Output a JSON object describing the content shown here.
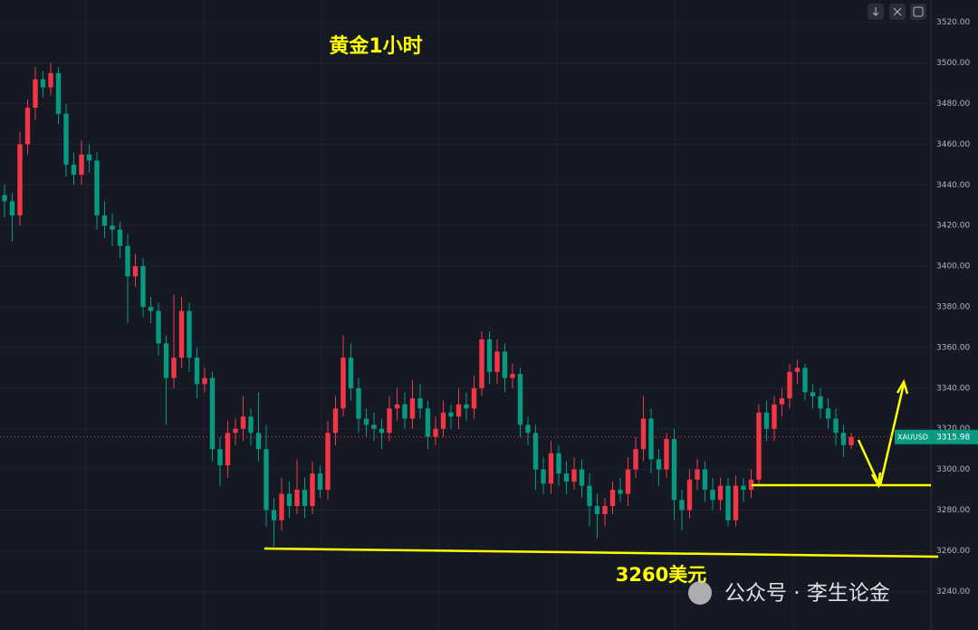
{
  "chart_data": {
    "type": "candlestick",
    "title": "黄金1小时",
    "annotation": "3260美元",
    "watermark": "公众号 · 李生论金",
    "symbol": "XAUUSD",
    "last_price": 3315.98,
    "up_color": "#f23645",
    "down_color": "#089981",
    "ylim": [
      3221,
      3531
    ],
    "yticks": [
      {
        "value": 3240,
        "label": "3240.00"
      },
      {
        "value": 3260,
        "label": "3260.00"
      },
      {
        "value": 3280,
        "label": "3280.00"
      },
      {
        "value": 3300,
        "label": "3300.00"
      },
      {
        "value": 3320,
        "label": "3320.00"
      },
      {
        "value": 3340,
        "label": "3340.00"
      },
      {
        "value": 3360,
        "label": "3360.00"
      },
      {
        "value": 3380,
        "label": "3380.00"
      },
      {
        "value": 3400,
        "label": "3400.00"
      },
      {
        "value": 3420,
        "label": "3420.00"
      },
      {
        "value": 3440,
        "label": "3440.00"
      },
      {
        "value": 3460,
        "label": "3460.00"
      },
      {
        "value": 3480,
        "label": "3480.00"
      },
      {
        "value": 3500,
        "label": "3500.00"
      },
      {
        "value": 3520,
        "label": "3520.00"
      }
    ],
    "open": [
      3435,
      3432,
      3425,
      3460,
      3478,
      3492,
      3488,
      3495,
      3475,
      3450,
      3445,
      3455,
      3452,
      3425,
      3420,
      3418,
      3410,
      3395,
      3400,
      3380,
      3378,
      3362,
      3345,
      3355,
      3378,
      3355,
      3342,
      3345,
      3310,
      3302,
      3318,
      3320,
      3326,
      3318,
      3310,
      3280,
      3275,
      3288,
      3282,
      3290,
      3282,
      3298,
      3290,
      3318,
      3330,
      3355,
      3340,
      3325,
      3322,
      3320,
      3318,
      3330,
      3332,
      3325,
      3335,
      3330,
      3316,
      3320,
      3328,
      3326,
      3332,
      3330,
      3340,
      3364,
      3348,
      3358,
      3345,
      3347,
      3322,
      3318,
      3300,
      3293,
      3308,
      3298,
      3294,
      3300,
      3292,
      3282,
      3278,
      3282,
      3290,
      3288,
      3300,
      3310,
      3325,
      3305,
      3300,
      3315,
      3285,
      3280,
      3295,
      3300,
      3290,
      3285,
      3292,
      3275,
      3292,
      3290,
      3295,
      3328,
      3320,
      3332,
      3335,
      3348,
      3350,
      3338,
      3336,
      3330,
      3325,
      3318,
      3312
    ],
    "high": [
      3440,
      3436,
      3466,
      3482,
      3498,
      3496,
      3500,
      3498,
      3480,
      3456,
      3462,
      3460,
      3456,
      3432,
      3426,
      3422,
      3416,
      3406,
      3404,
      3385,
      3382,
      3366,
      3386,
      3385,
      3382,
      3360,
      3350,
      3348,
      3316,
      3324,
      3325,
      3336,
      3330,
      3338,
      3322,
      3286,
      3296,
      3294,
      3305,
      3296,
      3304,
      3302,
      3324,
      3336,
      3366,
      3362,
      3345,
      3330,
      3328,
      3325,
      3336,
      3340,
      3338,
      3344,
      3342,
      3334,
      3326,
      3334,
      3332,
      3340,
      3338,
      3346,
      3368,
      3368,
      3364,
      3362,
      3352,
      3350,
      3326,
      3322,
      3306,
      3314,
      3312,
      3304,
      3306,
      3305,
      3298,
      3288,
      3286,
      3294,
      3296,
      3306,
      3316,
      3336,
      3330,
      3310,
      3318,
      3320,
      3290,
      3300,
      3305,
      3304,
      3296,
      3296,
      3296,
      3297,
      3296,
      3300,
      3332,
      3334,
      3336,
      3340,
      3352,
      3354,
      3352,
      3342,
      3340,
      3335,
      3330,
      3322,
      3318
    ],
    "low": [
      3424,
      3412,
      3420,
      3455,
      3472,
      3483,
      3484,
      3470,
      3444,
      3440,
      3440,
      3446,
      3418,
      3414,
      3410,
      3404,
      3372,
      3390,
      3375,
      3372,
      3356,
      3322,
      3340,
      3350,
      3348,
      3335,
      3338,
      3304,
      3292,
      3296,
      3312,
      3314,
      3312,
      3304,
      3272,
      3262,
      3270,
      3276,
      3278,
      3276,
      3278,
      3286,
      3285,
      3312,
      3326,
      3334,
      3318,
      3316,
      3314,
      3310,
      3314,
      3324,
      3320,
      3320,
      3325,
      3310,
      3312,
      3316,
      3320,
      3320,
      3324,
      3325,
      3336,
      3342,
      3342,
      3338,
      3340,
      3316,
      3312,
      3290,
      3288,
      3288,
      3292,
      3288,
      3290,
      3286,
      3272,
      3266,
      3272,
      3278,
      3284,
      3282,
      3296,
      3304,
      3298,
      3292,
      3296,
      3275,
      3270,
      3276,
      3290,
      3284,
      3280,
      3280,
      3272,
      3272,
      3284,
      3286,
      3292,
      3314,
      3314,
      3326,
      3330,
      3342,
      3334,
      3330,
      3325,
      3320,
      3312,
      3306,
      3310
    ],
    "close": [
      3432,
      3425,
      3460,
      3478,
      3492,
      3488,
      3495,
      3475,
      3450,
      3445,
      3455,
      3452,
      3425,
      3420,
      3418,
      3410,
      3395,
      3400,
      3380,
      3378,
      3362,
      3345,
      3355,
      3378,
      3355,
      3342,
      3345,
      3310,
      3302,
      3318,
      3320,
      3326,
      3318,
      3310,
      3280,
      3275,
      3288,
      3282,
      3290,
      3282,
      3298,
      3290,
      3318,
      3330,
      3355,
      3340,
      3325,
      3322,
      3320,
      3318,
      3330,
      3332,
      3325,
      3335,
      3330,
      3316,
      3320,
      3328,
      3326,
      3332,
      3330,
      3340,
      3364,
      3348,
      3358,
      3345,
      3347,
      3322,
      3318,
      3300,
      3293,
      3308,
      3298,
      3294,
      3300,
      3292,
      3282,
      3278,
      3282,
      3290,
      3288,
      3300,
      3310,
      3325,
      3305,
      3300,
      3315,
      3285,
      3280,
      3295,
      3300,
      3290,
      3285,
      3292,
      3275,
      3292,
      3290,
      3295,
      3328,
      3320,
      3332,
      3335,
      3348,
      3350,
      3338,
      3336,
      3330,
      3325,
      3318,
      3312,
      3315.98
    ]
  }
}
